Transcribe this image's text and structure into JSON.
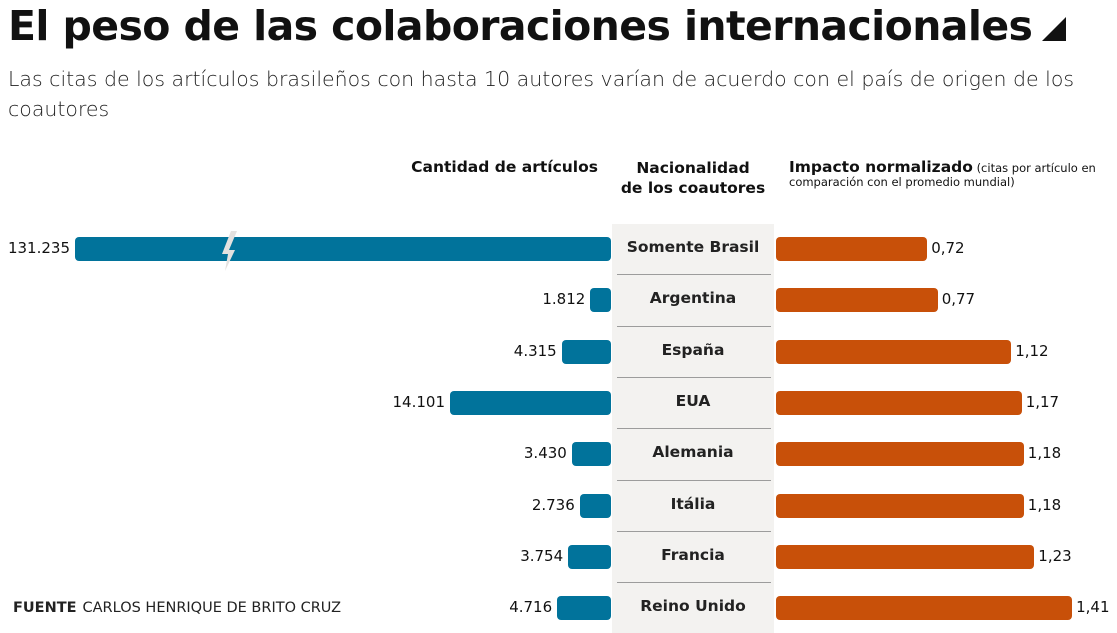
{
  "header": {
    "title": "El peso de las colaboraciones internacionales",
    "subtitle": "Las citas de los artículos brasileños con hasta 10 autores varían de acuerdo con el país de origen de los coautores"
  },
  "columns": {
    "left_title": "Cantidad de artículos",
    "middle_title_line1": "Nacionalidad",
    "middle_title_line2": "de los coautores",
    "right_title": "Impacto normalizado",
    "right_note": "(citas por artículo en comparación con el promedio mundial)"
  },
  "colors": {
    "articles": "#01739b",
    "impact": "#c85009",
    "middle_band": "#f3f2f0"
  },
  "chart_data": {
    "type": "bar",
    "categories": [
      "Somente Brasil",
      "Argentina",
      "España",
      "EUA",
      "Alemania",
      "Itália",
      "Francia",
      "Reino Unido"
    ],
    "series": [
      {
        "name": "Cantidad de artículos",
        "values": [
          131235,
          1812,
          4315,
          14101,
          3430,
          2736,
          3754,
          4716
        ],
        "labels": [
          "131.235",
          "1.812",
          "4.315",
          "14.101",
          "3.430",
          "2.736",
          "3.754",
          "4.716"
        ],
        "broken_axis": [
          "Somente Brasil"
        ],
        "direction": "leftward"
      },
      {
        "name": "Impacto normalizado",
        "values": [
          0.72,
          0.77,
          1.12,
          1.17,
          1.18,
          1.18,
          1.23,
          1.41
        ],
        "labels": [
          "0,72",
          "0,77",
          "1,12",
          "1,17",
          "1,18",
          "1,18",
          "1,23",
          "1,41"
        ],
        "direction": "rightward"
      }
    ],
    "title": "El peso de las colaboraciones internacionales",
    "xlabel": "",
    "ylabel": "Nacionalidad de los coautores"
  },
  "footer": {
    "source_label": "FUENTE",
    "source_text": "CARLOS HENRIQUE DE BRITO CRUZ"
  }
}
